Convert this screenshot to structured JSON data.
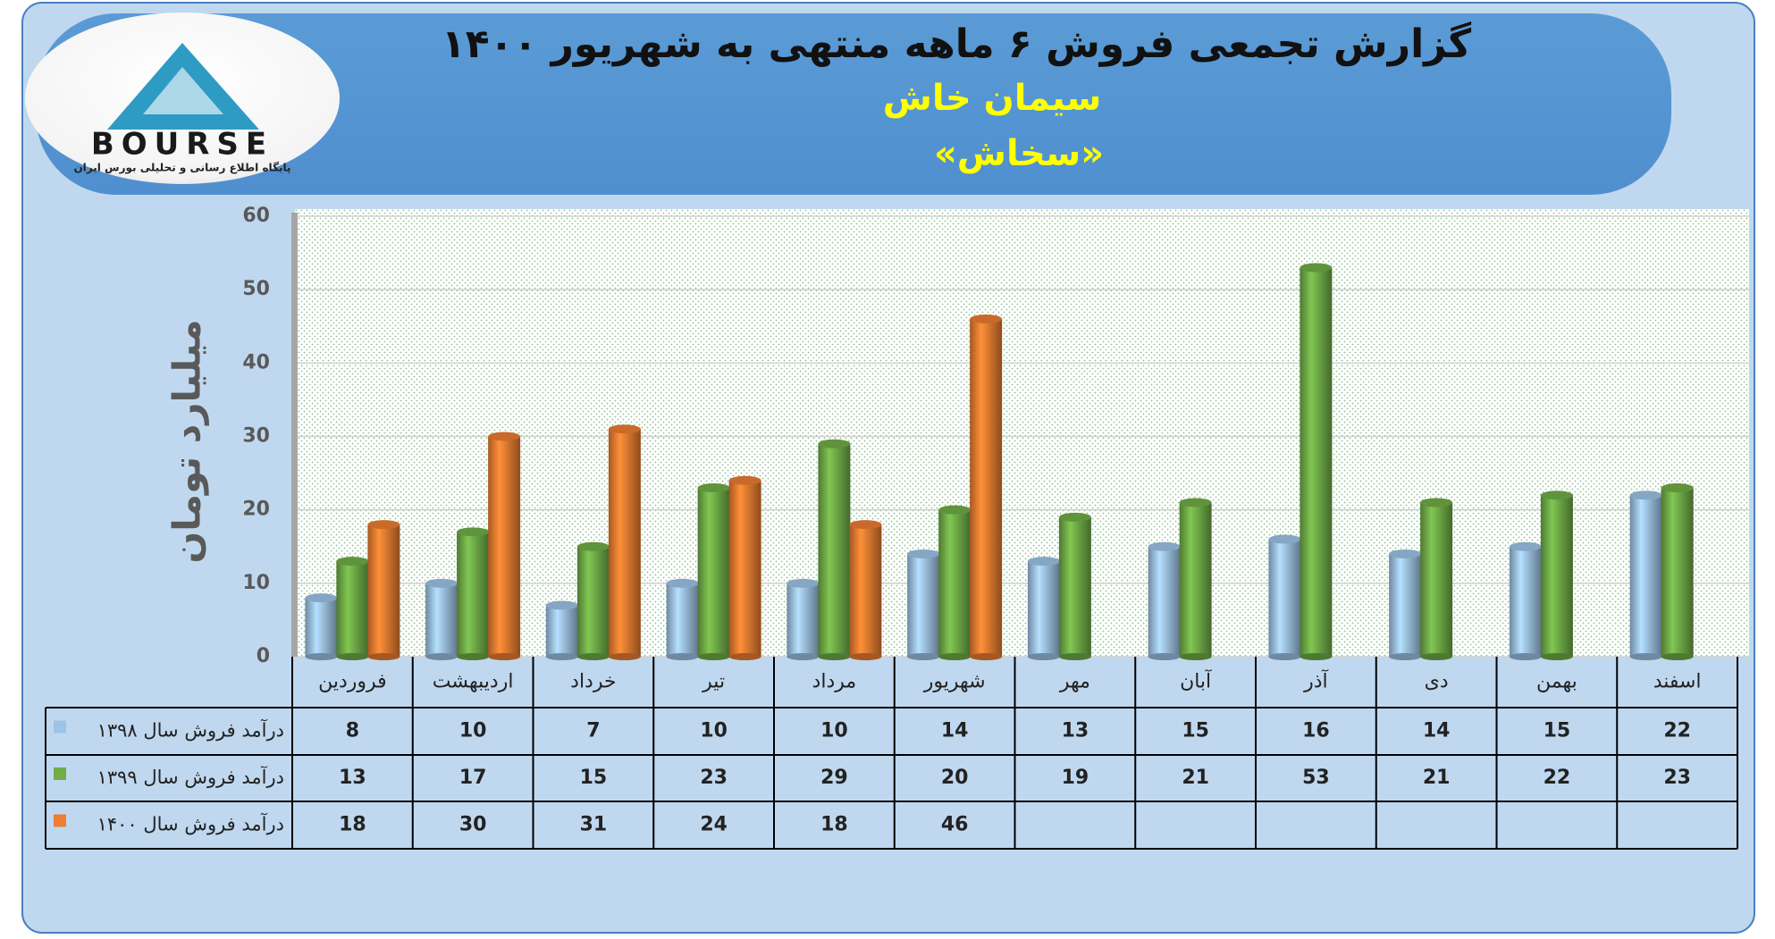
{
  "logo": {
    "name": "BOURSE",
    "tagline": "پایگاه اطلاع رسانی و تحلیلی بورس ایران"
  },
  "chart_data": {
    "type": "bar",
    "title": "گزارش تجمعی فروش ۶ ماهه منتهی به شهریور ۱۴۰۰",
    "subtitle": "سیمان خاش",
    "symbol": "«سخاش»",
    "y_label": "میلیارد تومان",
    "categories": [
      "فروردین",
      "اردیبهشت",
      "خرداد",
      "تیر",
      "مرداد",
      "شهریور",
      "مهر",
      "آبان",
      "آذر",
      "دی",
      "بهمن",
      "اسفند"
    ],
    "series": [
      {
        "name": "درآمد فروش سال ۱۳۹۸",
        "color": "#9dc3e6",
        "values": [
          8,
          10,
          7,
          10,
          10,
          14,
          13,
          15,
          16,
          14,
          15,
          22
        ]
      },
      {
        "name": "درآمد فروش سال ۱۳۹۹",
        "color": "#70ad47",
        "values": [
          13,
          17,
          15,
          23,
          29,
          20,
          19,
          21,
          53,
          21,
          22,
          23
        ]
      },
      {
        "name": "درآمد فروش سال ۱۴۰۰",
        "color": "#ed7d31",
        "values": [
          18,
          30,
          31,
          24,
          18,
          46,
          null,
          null,
          null,
          null,
          null,
          null
        ]
      }
    ],
    "ylim": [
      0,
      60
    ],
    "yticks": [
      0,
      10,
      20,
      30,
      40,
      50,
      60
    ],
    "grid": true
  }
}
